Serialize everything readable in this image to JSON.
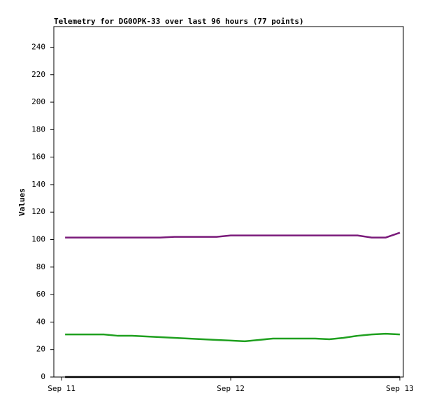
{
  "chart_data": {
    "type": "line",
    "title": "Telemetry for DG0OPK-33 over last 96 hours (77 points)",
    "y_label": "Values",
    "x": [
      0.5,
      2,
      4,
      6,
      8,
      10,
      12,
      14,
      16,
      18,
      20,
      22,
      24,
      26,
      28,
      30,
      32,
      34,
      36,
      38,
      40,
      42,
      44,
      46,
      48
    ],
    "series": [
      {
        "color": "#7a1a7a",
        "values": [
          101.5,
          101.5,
          101.5,
          101.5,
          101.5,
          101.5,
          101.5,
          101.5,
          102,
          102,
          102,
          102,
          103,
          103,
          103,
          103,
          103,
          103,
          103,
          103,
          103,
          103,
          101.5,
          101.5,
          105
        ]
      },
      {
        "color": "#1fa01f",
        "values": [
          31,
          31,
          31,
          31,
          30,
          30,
          29.5,
          29,
          28.5,
          28,
          27.5,
          27,
          26.5,
          26,
          27,
          28,
          28,
          28,
          28,
          27.5,
          28.5,
          30,
          31,
          31.5,
          31
        ]
      },
      {
        "color": "#000000",
        "values": [
          0,
          0,
          0,
          0,
          0,
          0,
          0,
          0,
          0,
          0,
          0,
          0,
          0,
          0,
          0,
          0,
          0,
          0,
          0,
          0,
          0,
          0,
          0,
          0,
          0
        ]
      }
    ],
    "xlim": [
      -1.1,
      48.5
    ],
    "xticks": [
      {
        "value": 0,
        "label": "Sep 11"
      },
      {
        "value": 24,
        "label": "Sep 12"
      },
      {
        "value": 48,
        "label": "Sep 13"
      }
    ],
    "ylim": [
      0,
      255
    ],
    "yticks": [
      0,
      20,
      40,
      60,
      80,
      100,
      120,
      140,
      160,
      180,
      200,
      220,
      240
    ],
    "grid": false
  }
}
